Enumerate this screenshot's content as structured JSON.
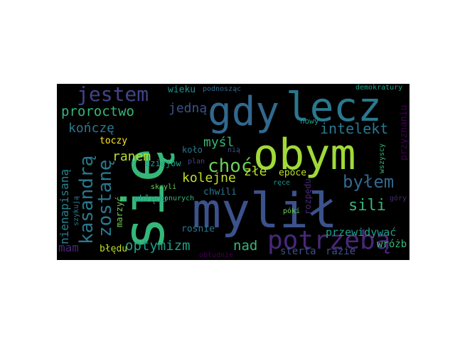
{
  "word_cloud": {
    "background": "#000000",
    "words": [
      {
        "text": "się",
        "color": "#35b779"
      },
      {
        "text": "gdy",
        "color": "#31688e"
      },
      {
        "text": "lecz",
        "color": "#2a788e"
      },
      {
        "text": "obym",
        "color": "#a0da39"
      },
      {
        "text": "mylił",
        "color": "#3b528b"
      },
      {
        "text": "potrzebą",
        "color": "#482878"
      },
      {
        "text": "jestem",
        "color": "#414487"
      },
      {
        "text": "kasandrą",
        "color": "#2a788e"
      },
      {
        "text": "zostanę",
        "color": "#2a788e"
      },
      {
        "text": "nienapisaną",
        "color": "#26828e"
      },
      {
        "text": "proroctwo",
        "color": "#35b779"
      },
      {
        "text": "jedną",
        "color": "#3b528b"
      },
      {
        "text": "kończę",
        "color": "#2a788e"
      },
      {
        "text": "intelekt",
        "color": "#2a788e"
      },
      {
        "text": "myśl",
        "color": "#35b779"
      },
      {
        "text": "choć",
        "color": "#6ece58"
      },
      {
        "text": "byłem",
        "color": "#31688e"
      },
      {
        "text": "ranem",
        "color": "#b5de2b"
      },
      {
        "text": "kolejne",
        "color": "#bddf26"
      },
      {
        "text": "złe",
        "color": "#b5de2b"
      },
      {
        "text": "sili",
        "color": "#35b779"
      },
      {
        "text": "optymizm",
        "color": "#1f9e89"
      },
      {
        "text": "nad",
        "color": "#35b779"
      },
      {
        "text": "mam",
        "color": "#482878"
      },
      {
        "text": "toczy",
        "color": "#fde725"
      },
      {
        "text": "wieku",
        "color": "#21918c"
      },
      {
        "text": "epoce",
        "color": "#bddf26"
      },
      {
        "text": "chwili",
        "color": "#2a788e"
      },
      {
        "text": "koło",
        "color": "#2a788e"
      },
      {
        "text": "dziejów",
        "color": "#1f9e89"
      },
      {
        "text": "nowy",
        "color": "#1f9e89"
      },
      {
        "text": "przyznaniu",
        "color": "#440154"
      },
      {
        "text": "przewidywać",
        "color": "#1f9e89"
      },
      {
        "text": "wróżb",
        "color": "#35b779"
      },
      {
        "text": "błędu",
        "color": "#bddf26"
      },
      {
        "text": "obłędu",
        "color": "#1f9e89"
      },
      {
        "text": "rośnie",
        "color": "#2a788e"
      },
      {
        "text": "sterta",
        "color": "#3b528b"
      },
      {
        "text": "razie",
        "color": "#3b528b"
      },
      {
        "text": "rozpędu",
        "color": "#482878"
      },
      {
        "text": "marzyć",
        "color": "#6ece58"
      },
      {
        "text": "szykują",
        "color": "#2a788e"
      },
      {
        "text": "ponurych",
        "color": "#35b779"
      },
      {
        "text": "skryli",
        "color": "#6ece58"
      },
      {
        "text": "plan",
        "color": "#414487"
      },
      {
        "text": "nią",
        "color": "#3b528b"
      },
      {
        "text": "ręce",
        "color": "#21918c"
      },
      {
        "text": "pókí",
        "color": "#6ece58"
      },
      {
        "text": "góry",
        "color": "#482878"
      },
      {
        "text": "wszyscy",
        "color": "#35b779"
      },
      {
        "text": "podnosząc",
        "color": "#31688e"
      },
      {
        "text": "demokratury",
        "color": "#1f9e89"
      },
      {
        "text": "obłudnie",
        "color": "#440154"
      }
    ]
  }
}
